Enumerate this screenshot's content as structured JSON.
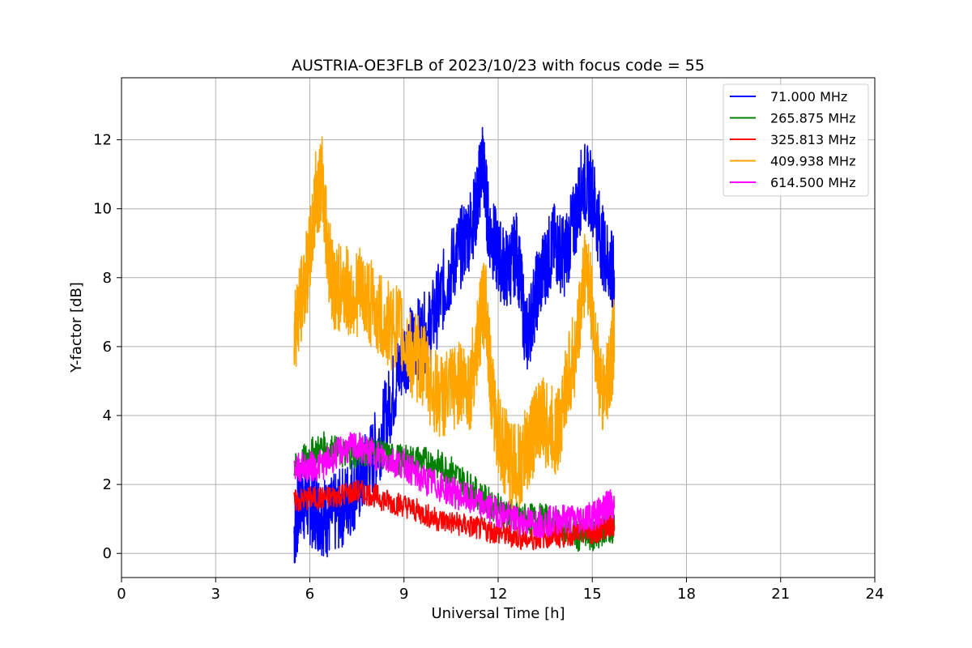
{
  "chart_data": {
    "type": "line",
    "title": "AUSTRIA-OE3FLB of 2023/10/23 with focus code = 55",
    "xlabel": "Universal Time [h]",
    "ylabel": "Y-factor [dB]",
    "xlim": [
      0,
      24
    ],
    "ylim": [
      -0.7,
      13.8
    ],
    "xticks": [
      0,
      3,
      6,
      9,
      12,
      15,
      18,
      21,
      24
    ],
    "yticks": [
      0,
      2,
      4,
      6,
      8,
      10,
      12
    ],
    "grid": true,
    "legend_position": "top-right",
    "series": [
      {
        "name": " 71.000 MHz",
        "color": "#0000ff",
        "x": [
          5.5,
          5.7,
          6.0,
          6.3,
          6.6,
          7.0,
          7.4,
          7.8,
          8.2,
          8.6,
          9.0,
          9.4,
          9.8,
          10.2,
          10.6,
          11.0,
          11.3,
          11.5,
          11.7,
          12.0,
          12.3,
          12.6,
          12.9,
          13.2,
          13.5,
          13.8,
          14.1,
          14.4,
          14.7,
          15.0,
          15.3,
          15.6,
          15.7
        ],
        "y": [
          0.6,
          1.6,
          1.4,
          1.2,
          1.0,
          1.3,
          1.8,
          2.4,
          3.2,
          4.5,
          5.8,
          6.2,
          6.5,
          7.5,
          8.5,
          9.2,
          10.0,
          11.5,
          9.5,
          8.6,
          8.2,
          8.8,
          6.2,
          7.5,
          8.4,
          9.0,
          8.6,
          9.5,
          10.8,
          10.5,
          9.0,
          8.2,
          8.0
        ]
      },
      {
        "name": "265.875 MHz",
        "color": "#008000",
        "x": [
          5.5,
          6.0,
          6.5,
          7.0,
          7.5,
          8.0,
          8.5,
          9.0,
          9.5,
          10.0,
          10.5,
          11.0,
          11.5,
          12.0,
          12.5,
          13.0,
          13.5,
          14.0,
          14.5,
          15.0,
          15.3,
          15.5,
          15.7
        ],
        "y": [
          2.4,
          2.9,
          3.1,
          2.9,
          2.9,
          3.0,
          2.8,
          2.7,
          2.7,
          2.6,
          2.4,
          2.0,
          1.6,
          1.3,
          1.1,
          1.0,
          1.0,
          0.8,
          0.5,
          0.5,
          0.6,
          0.8,
          0.7
        ]
      },
      {
        "name": "325.813 MHz",
        "color": "#ff0000",
        "x": [
          5.5,
          6.0,
          6.5,
          7.0,
          7.5,
          8.0,
          8.5,
          9.0,
          9.5,
          10.0,
          10.5,
          11.0,
          11.5,
          12.0,
          12.5,
          13.0,
          13.5,
          14.0,
          14.5,
          15.0,
          15.3,
          15.5,
          15.7
        ],
        "y": [
          1.5,
          1.6,
          1.6,
          1.7,
          1.8,
          1.7,
          1.5,
          1.4,
          1.2,
          1.0,
          0.9,
          0.8,
          0.7,
          0.6,
          0.5,
          0.4,
          0.5,
          0.5,
          0.6,
          0.6,
          0.7,
          0.8,
          0.8
        ]
      },
      {
        "name": "614.500 MHz",
        "color": "#ff00ff",
        "x": [
          5.5,
          6.0,
          6.5,
          7.0,
          7.5,
          8.0,
          8.5,
          9.0,
          9.5,
          10.0,
          10.5,
          11.0,
          11.5,
          12.0,
          12.5,
          13.0,
          13.5,
          14.0,
          14.5,
          15.0,
          15.3,
          15.5,
          15.7
        ],
        "y": [
          2.5,
          2.5,
          2.6,
          3.0,
          3.1,
          2.9,
          2.7,
          2.6,
          2.2,
          2.0,
          1.8,
          1.6,
          1.4,
          1.2,
          1.0,
          0.9,
          0.9,
          1.0,
          1.0,
          1.1,
          1.2,
          1.4,
          1.4
        ]
      },
      {
        "name": "409.938 MHz",
        "color": "#ffa500",
        "x": [
          5.5,
          5.7,
          6.0,
          6.2,
          6.4,
          6.6,
          6.8,
          7.0,
          7.3,
          7.6,
          8.0,
          8.4,
          8.8,
          9.2,
          9.6,
          10.0,
          10.4,
          10.8,
          11.1,
          11.4,
          11.6,
          11.8,
          12.1,
          12.4,
          12.7,
          13.0,
          13.3,
          13.6,
          13.9,
          14.2,
          14.5,
          14.8,
          15.0,
          15.3,
          15.6,
          15.7
        ],
        "y": [
          6.5,
          7.2,
          8.6,
          10.5,
          10.8,
          8.6,
          7.6,
          7.8,
          7.5,
          7.6,
          7.2,
          6.6,
          6.6,
          5.8,
          5.5,
          4.6,
          4.6,
          5.0,
          4.8,
          6.5,
          7.5,
          4.5,
          3.2,
          2.6,
          2.5,
          3.2,
          4.0,
          3.6,
          3.5,
          5.0,
          6.0,
          8.6,
          7.0,
          4.5,
          5.5,
          6.2
        ]
      }
    ]
  }
}
